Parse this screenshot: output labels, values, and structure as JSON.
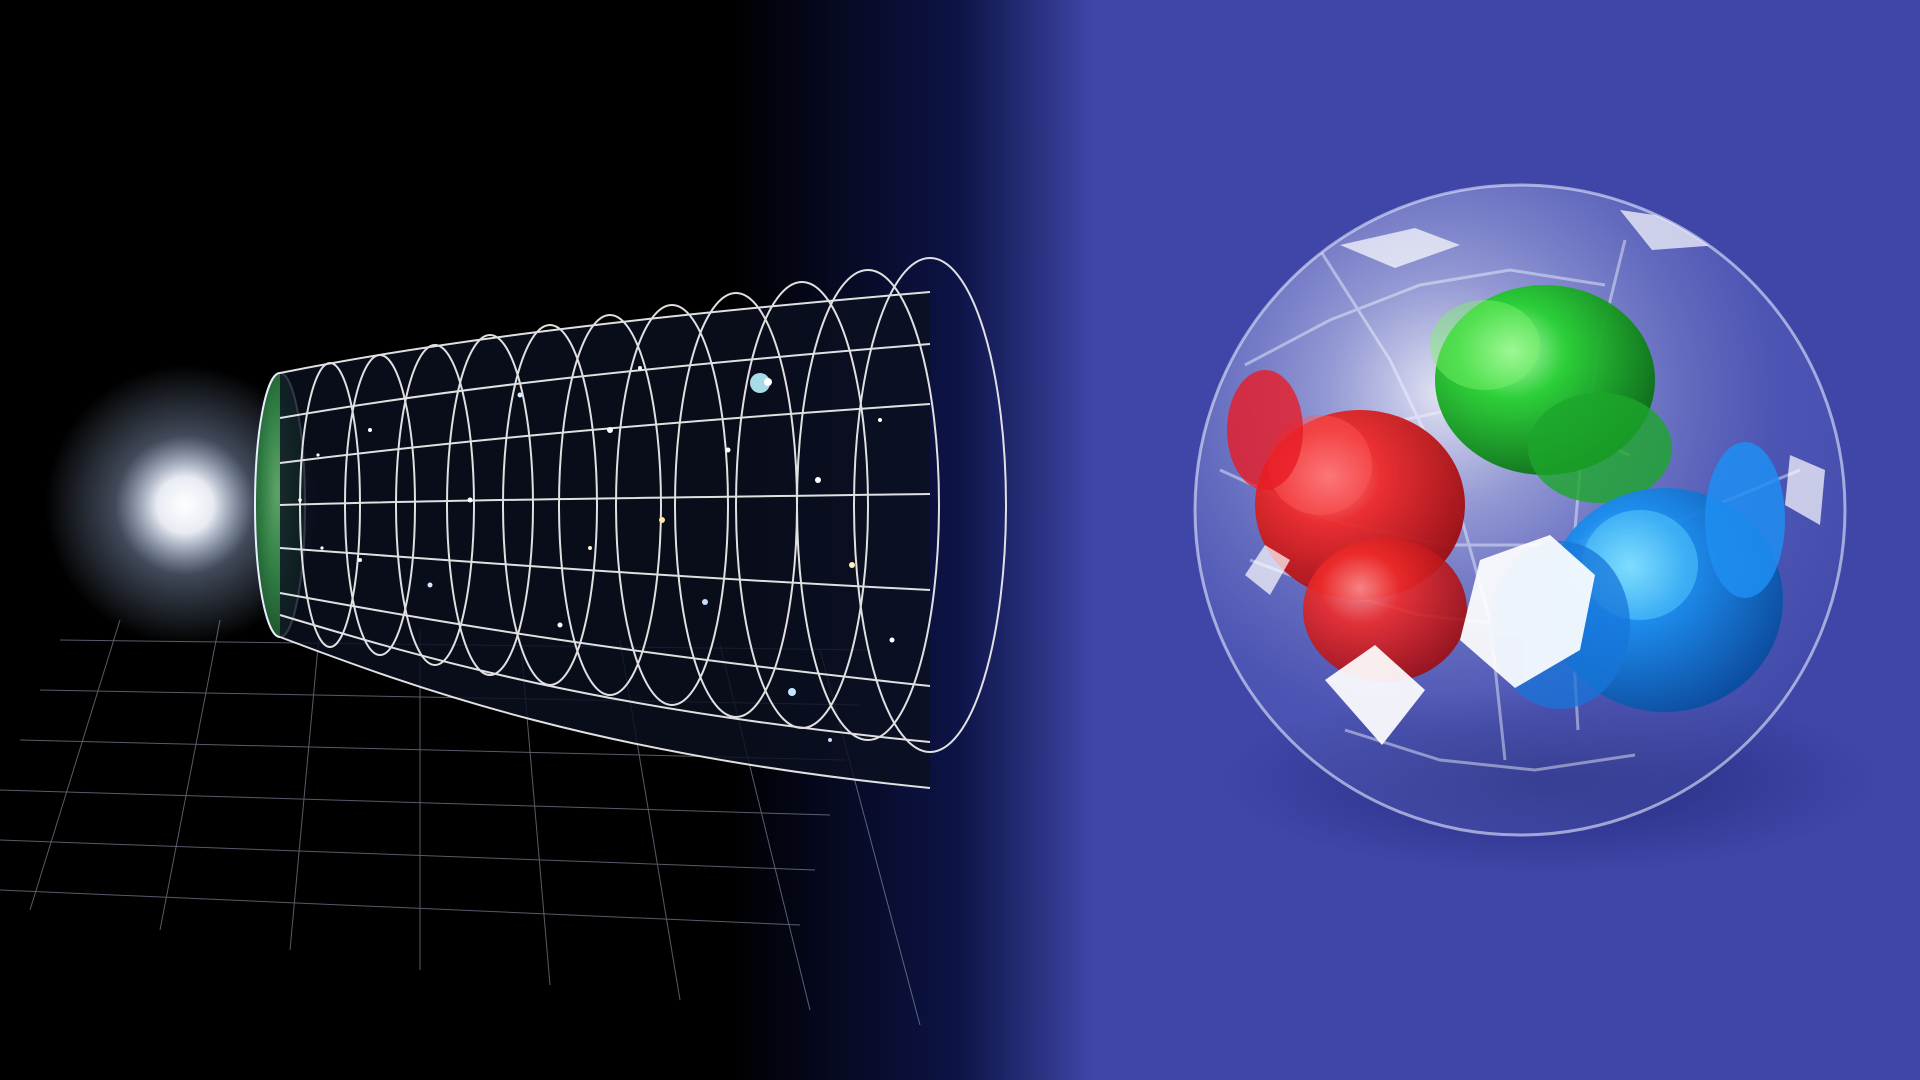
{
  "image": {
    "left_panel": {
      "subject": "cosmic-expansion-timeline",
      "colors": {
        "background": "#000000",
        "glow": "#ffffff",
        "grid": "#d9d9d9",
        "cmb": "#3f8f4a"
      }
    },
    "right_panel": {
      "subject": "proton-with-quarks",
      "colors": {
        "background": "#3f46a8",
        "shadow": "#2a2f86",
        "red_quark": "#e41c24",
        "green_quark": "#22c12a",
        "blue_quark": "#1b86e8"
      }
    }
  }
}
